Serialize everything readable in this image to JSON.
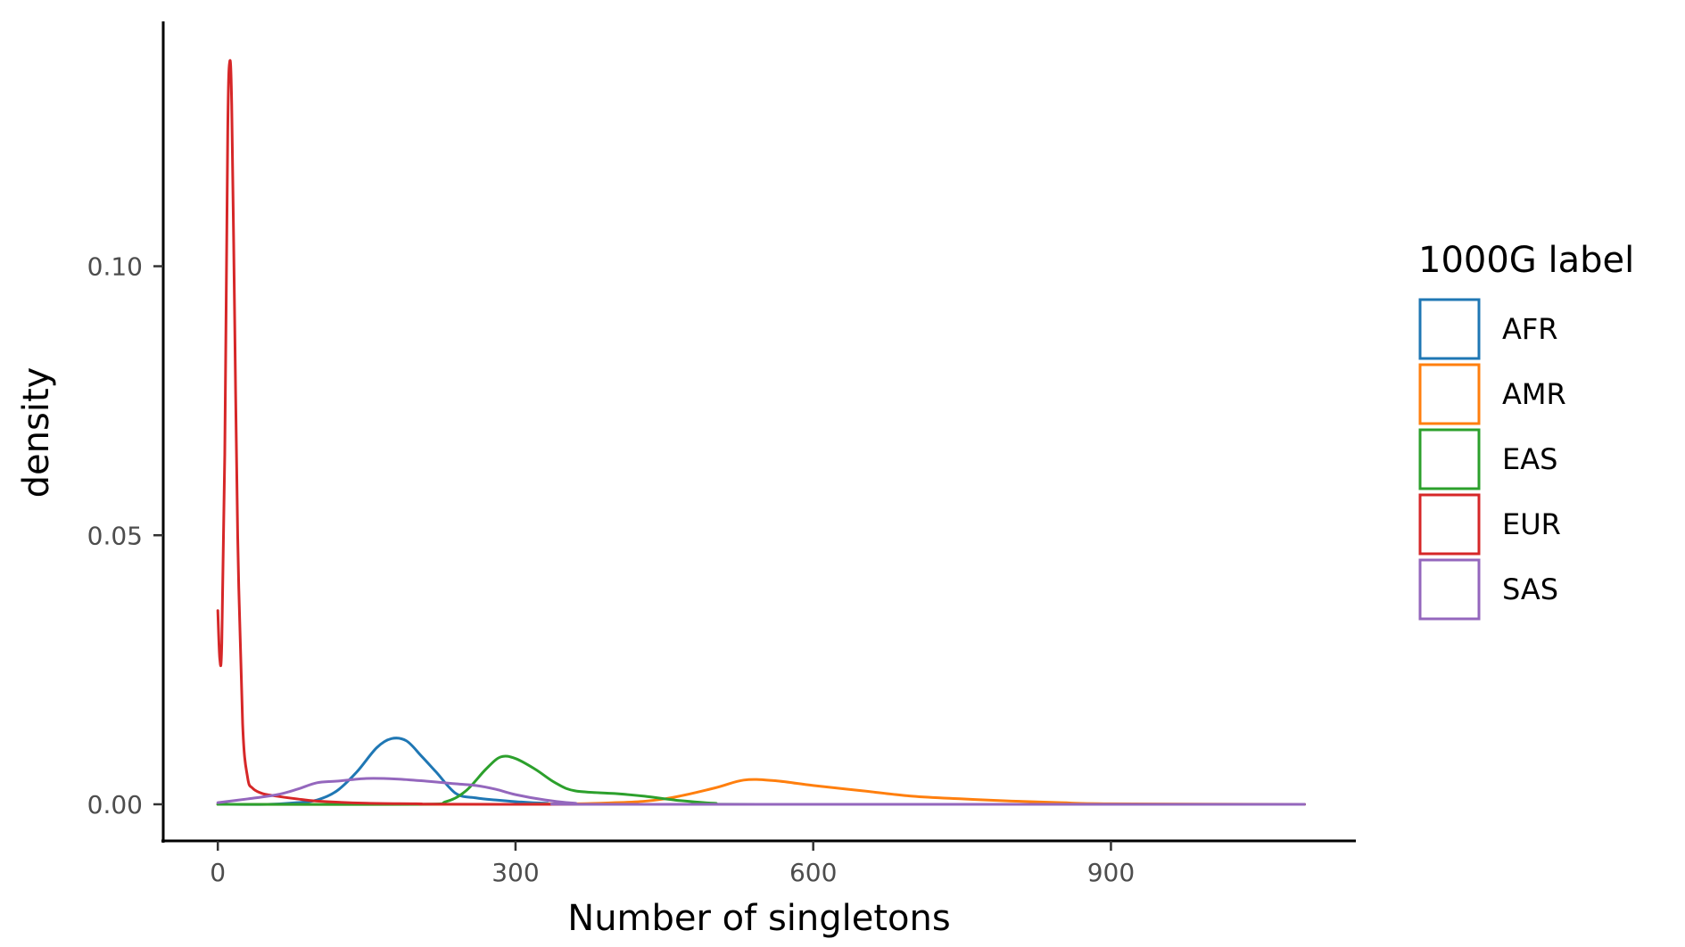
{
  "chart_data": {
    "type": "line",
    "title": "",
    "xlabel": "Number of singletons",
    "ylabel": "density",
    "xlim": [
      -55,
      1145
    ],
    "ylim": [
      -0.0068,
      0.1455
    ],
    "x_ticks": [
      0,
      300,
      600,
      900
    ],
    "x_tick_labels": [
      "0",
      "300",
      "600",
      "900"
    ],
    "y_ticks": [
      0.0,
      0.05,
      0.1
    ],
    "y_tick_labels": [
      "0.00",
      "0.05",
      "0.10"
    ],
    "grid": false,
    "legend": {
      "title": "1000G label",
      "position": "right"
    },
    "series": [
      {
        "name": "AFR",
        "color": "#1f77b4",
        "points": [
          [
            0,
            0
          ],
          [
            50,
            0
          ],
          [
            80,
            0.0003
          ],
          [
            100,
            0.0008
          ],
          [
            120,
            0.0025
          ],
          [
            140,
            0.006
          ],
          [
            160,
            0.0105
          ],
          [
            175,
            0.0122
          ],
          [
            190,
            0.0118
          ],
          [
            205,
            0.009
          ],
          [
            220,
            0.006
          ],
          [
            240,
            0.002
          ],
          [
            260,
            0.0012
          ],
          [
            280,
            0.0008
          ],
          [
            300,
            0.0005
          ],
          [
            330,
            0.0002
          ],
          [
            400,
            0
          ],
          [
            1095,
            0
          ]
        ]
      },
      {
        "name": "AMR",
        "color": "#ff7f0e",
        "points": [
          [
            0,
            0
          ],
          [
            300,
            0
          ],
          [
            400,
            0.0003
          ],
          [
            450,
            0.001
          ],
          [
            500,
            0.003
          ],
          [
            530,
            0.0045
          ],
          [
            560,
            0.0044
          ],
          [
            600,
            0.0035
          ],
          [
            650,
            0.0025
          ],
          [
            700,
            0.0015
          ],
          [
            750,
            0.001
          ],
          [
            800,
            0.0006
          ],
          [
            850,
            0.0003
          ],
          [
            900,
            0.0001
          ],
          [
            1095,
            0
          ]
        ]
      },
      {
        "name": "EAS",
        "color": "#2ca02c",
        "points": [
          [
            0,
            0
          ],
          [
            200,
            0
          ],
          [
            230,
            0.0005
          ],
          [
            250,
            0.0025
          ],
          [
            270,
            0.0065
          ],
          [
            285,
            0.0088
          ],
          [
            300,
            0.0085
          ],
          [
            320,
            0.0065
          ],
          [
            340,
            0.004
          ],
          [
            360,
            0.0025
          ],
          [
            400,
            0.002
          ],
          [
            430,
            0.0015
          ],
          [
            460,
            0.0008
          ],
          [
            500,
            0.0002
          ],
          [
            550,
            0
          ],
          [
            1095,
            0
          ]
        ]
      },
      {
        "name": "EUR",
        "color": "#d62728",
        "points": [
          [
            0,
            0.036
          ],
          [
            2,
            0.027
          ],
          [
            4,
            0.03
          ],
          [
            7,
            0.065
          ],
          [
            10,
            0.125
          ],
          [
            12,
            0.138
          ],
          [
            14,
            0.13
          ],
          [
            17,
            0.09
          ],
          [
            20,
            0.05
          ],
          [
            25,
            0.015
          ],
          [
            30,
            0.005
          ],
          [
            35,
            0.003
          ],
          [
            45,
            0.002
          ],
          [
            60,
            0.0015
          ],
          [
            80,
            0.001
          ],
          [
            100,
            0.0006
          ],
          [
            150,
            0.0002
          ],
          [
            200,
            0.0001
          ],
          [
            300,
            0
          ],
          [
            1095,
            0
          ]
        ]
      },
      {
        "name": "SAS",
        "color": "#9467bd",
        "points": [
          [
            0,
            0.0003
          ],
          [
            30,
            0.001
          ],
          [
            60,
            0.0018
          ],
          [
            80,
            0.0028
          ],
          [
            100,
            0.004
          ],
          [
            120,
            0.0043
          ],
          [
            150,
            0.0048
          ],
          [
            180,
            0.0047
          ],
          [
            210,
            0.0043
          ],
          [
            240,
            0.0038
          ],
          [
            260,
            0.0035
          ],
          [
            280,
            0.0028
          ],
          [
            300,
            0.0018
          ],
          [
            330,
            0.0008
          ],
          [
            360,
            0.0002
          ],
          [
            400,
            0
          ],
          [
            1095,
            0
          ]
        ]
      }
    ]
  }
}
